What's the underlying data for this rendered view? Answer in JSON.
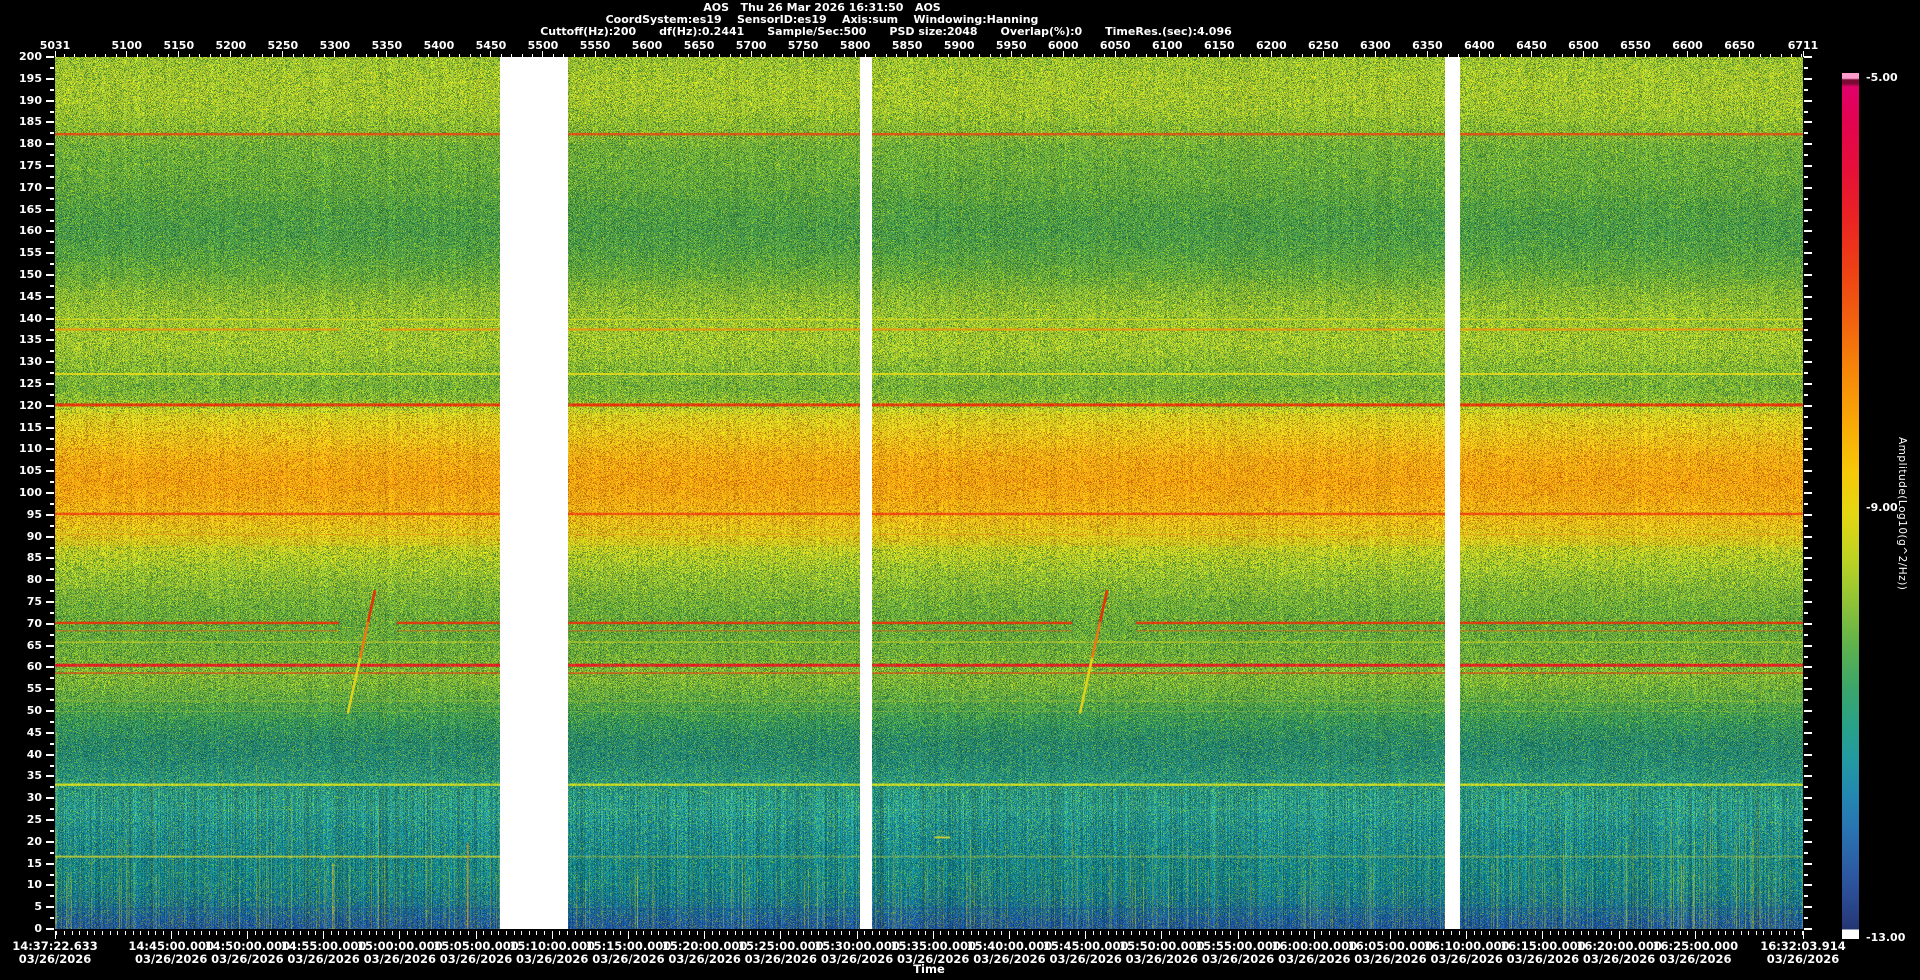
{
  "header": {
    "line1": "AOS   Thu 26 Mar 2026 16:31:50   AOS",
    "line2": "CoordSystem:es19    SensorID:es19    Axis:sum    Windowing:Hanning",
    "line3": "Cuttoff(Hz):200      df(Hz):0.2441      Sample/Sec:500      PSD size:2048      Overlap(%):0      TimeRes.(sec):4.096"
  },
  "chart_data": {
    "type": "heatmap",
    "subtype": "spectrogram",
    "x_axis": {
      "bottom_label": "Time",
      "date": "03/26/2026",
      "time_start": "14:37:22.633",
      "time_end": "16:32:03.914",
      "time_tick_labels": [
        "14:37:22.633",
        "14:45:00.000",
        "14:50:00.000",
        "14:55:00.000",
        "15:00:00.000",
        "15:05:00.000",
        "15:10:00.000",
        "15:15:00.000",
        "15:20:00.000",
        "15:25:00.000",
        "15:30:00.000",
        "15:35:00.000",
        "15:40:00.000",
        "15:45:00.000",
        "15:50:00.000",
        "15:55:00.000",
        "16:00:00.000",
        "16:05:00.000",
        "16:10:00.000",
        "16:15:00.000",
        "16:20:00.000",
        "16:25:00.000",
        "16:32:03.914"
      ],
      "minor_tick_seconds": 30,
      "top_record_labels": [
        5031,
        5100,
        5150,
        5200,
        5250,
        5300,
        5350,
        5400,
        5450,
        5500,
        5550,
        5600,
        5650,
        5700,
        5750,
        5800,
        5850,
        5900,
        5950,
        6000,
        6050,
        6100,
        6150,
        6200,
        6250,
        6300,
        6350,
        6400,
        6450,
        6500,
        6550,
        6600,
        6650,
        6711
      ],
      "top_minor_step": 10
    },
    "y_axis": {
      "tick_min": 0,
      "tick_max": 200,
      "tick_step": 5,
      "minor_step": 2.5,
      "tick_labels": [
        0,
        5,
        10,
        15,
        20,
        25,
        30,
        35,
        40,
        45,
        50,
        55,
        60,
        65,
        70,
        75,
        80,
        85,
        90,
        95,
        100,
        105,
        110,
        115,
        120,
        125,
        130,
        135,
        140,
        145,
        150,
        155,
        160,
        165,
        170,
        175,
        180,
        185,
        190,
        195,
        200
      ]
    },
    "colorbar": {
      "title": "Amplitude(Log10(g^2/Hz))",
      "value_max": -5,
      "value_min": -13,
      "tick_labels": [
        "-5.00",
        "-9.00",
        "-13.00"
      ],
      "gradient": [
        [
          0.0,
          "#ff9cce"
        ],
        [
          0.006,
          "#ff9cce"
        ],
        [
          0.008,
          "#7a0a34"
        ],
        [
          0.012,
          "#7a0a34"
        ],
        [
          0.016,
          "#e2016a"
        ],
        [
          0.05,
          "#e20253"
        ],
        [
          0.11,
          "#e60f38"
        ],
        [
          0.17,
          "#ea2422"
        ],
        [
          0.23,
          "#ee4214"
        ],
        [
          0.29,
          "#f2640e"
        ],
        [
          0.35,
          "#f68a08"
        ],
        [
          0.41,
          "#f8ac06"
        ],
        [
          0.46,
          "#f6c808"
        ],
        [
          0.51,
          "#e4d612"
        ],
        [
          0.56,
          "#bed222"
        ],
        [
          0.61,
          "#90c436"
        ],
        [
          0.66,
          "#60b24c"
        ],
        [
          0.71,
          "#3ba66a"
        ],
        [
          0.755,
          "#28a289"
        ],
        [
          0.795,
          "#2399a3"
        ],
        [
          0.835,
          "#2387b2"
        ],
        [
          0.875,
          "#2973b2"
        ],
        [
          0.915,
          "#2c5ea6"
        ],
        [
          0.95,
          "#2b4c94"
        ],
        [
          0.975,
          "#273e80"
        ],
        [
          0.988,
          "#233672"
        ],
        [
          0.99,
          "#ffffff"
        ],
        [
          1.0,
          "#ffffff"
        ]
      ]
    },
    "data_gaps_x_fraction": [
      [
        0.2546,
        0.2935
      ],
      [
        0.4605,
        0.4674
      ],
      [
        0.7952,
        0.8038
      ]
    ],
    "background_bands": [
      [
        0,
        "#1d55a2",
        -12.5
      ],
      [
        2.5,
        "#1b5e9e",
        -12.3
      ],
      [
        5,
        "#166e96",
        -12.0
      ],
      [
        8,
        "#137a90",
        -11.8
      ],
      [
        11,
        "#13828e",
        -11.7
      ],
      [
        15,
        "#15858f",
        -11.6
      ],
      [
        19,
        "#1a8a93",
        -11.5
      ],
      [
        23,
        "#1f9095",
        -11.4
      ],
      [
        27,
        "#279a94",
        -11.2
      ],
      [
        30,
        "#2a9a8e",
        -11.2
      ],
      [
        33,
        "#2a9886",
        -11.2
      ],
      [
        36,
        "#26907e",
        -11.3
      ],
      [
        39,
        "#248a78",
        -11.4
      ],
      [
        43,
        "#26896f",
        -11.4
      ],
      [
        47,
        "#349560",
        -11.1
      ],
      [
        50,
        "#469e52",
        -10.8
      ],
      [
        53,
        "#5fa846",
        -10.4
      ],
      [
        56,
        "#78b23c",
        -10.1
      ],
      [
        59,
        "#84b838",
        -9.9
      ],
      [
        62,
        "#72ae3c",
        -10.2
      ],
      [
        66,
        "#68aa3e",
        -10.3
      ],
      [
        70,
        "#66a83e",
        -10.3
      ],
      [
        74,
        "#70ae3c",
        -10.2
      ],
      [
        78,
        "#84b638",
        -9.9
      ],
      [
        82,
        "#9cc232",
        -9.5
      ],
      [
        86,
        "#bcca28",
        -9.0
      ],
      [
        90,
        "#d8c81e",
        -8.6
      ],
      [
        94,
        "#e8bc18",
        -8.3
      ],
      [
        98,
        "#f0ac12",
        -8.0
      ],
      [
        103,
        "#f2a410",
        -7.9
      ],
      [
        108,
        "#f0ae14",
        -8.0
      ],
      [
        112,
        "#e8c01a",
        -8.3
      ],
      [
        116,
        "#dcce20",
        -8.5
      ],
      [
        119,
        "#ccd026",
        -8.7
      ],
      [
        121,
        "#8cba34",
        -9.6
      ],
      [
        124,
        "#78b23a",
        -10.0
      ],
      [
        128,
        "#84b838",
        -9.8
      ],
      [
        131,
        "#96c034",
        -9.5
      ],
      [
        134,
        "#a2c632",
        -9.3
      ],
      [
        138,
        "#a2c632",
        -9.3
      ],
      [
        142,
        "#96c034",
        -9.5
      ],
      [
        146,
        "#84b638",
        -9.8
      ],
      [
        150,
        "#68aa3e",
        -10.3
      ],
      [
        155,
        "#54a146",
        -10.6
      ],
      [
        160,
        "#4a9b4b",
        -10.8
      ],
      [
        165,
        "#509e46",
        -10.7
      ],
      [
        170,
        "#60a640",
        -10.5
      ],
      [
        175,
        "#6aac3e",
        -10.4
      ],
      [
        179,
        "#70ae3c",
        -10.3
      ],
      [
        183,
        "#86b836",
        -9.8
      ],
      [
        187,
        "#9cc232",
        -9.5
      ],
      [
        191,
        "#a6c631",
        -9.3
      ],
      [
        195,
        "#a6c631",
        -9.3
      ],
      [
        200,
        "#9cc233",
        -9.5
      ]
    ],
    "tonal_lines": [
      {
        "f": 182.3,
        "w": 2.5,
        "color": "#e64a10",
        "alpha": 1,
        "amp": -6.8
      },
      {
        "f": 139.8,
        "w": 1.4,
        "color": "#e2dc1a",
        "alpha": 0.85,
        "amp": -8.4
      },
      {
        "f": 137.5,
        "w": 2,
        "color": "#f29210",
        "alpha": 1,
        "amp": -7.4,
        "gaps": [
          [
            0.163,
            0.187
          ]
        ]
      },
      {
        "f": 127.3,
        "w": 2,
        "color": "#e6de16",
        "alpha": 1,
        "amp": -8.3
      },
      {
        "f": 120.2,
        "w": 3,
        "color": "#ee2606",
        "alpha": 1,
        "amp": -6.6
      },
      {
        "f": 95.2,
        "w": 2.5,
        "color": "#ee4210",
        "alpha": 1,
        "amp": -6.9
      },
      {
        "f": 90.5,
        "w": 1.2,
        "color": "#f0921a",
        "alpha": 0.55,
        "amp": -7.9
      },
      {
        "f": 70.2,
        "w": 2.4,
        "color": "#ee2e08",
        "alpha": 1,
        "amp": -6.8,
        "gaps": [
          [
            0.1619,
            0.1951
          ],
          [
            0.5818,
            0.6184
          ]
        ]
      },
      {
        "f": 68.4,
        "w": 1.2,
        "color": "#f05a12",
        "alpha": 0.65,
        "amp": -7.5,
        "gaps": [
          [
            0.1619,
            0.1951
          ],
          [
            0.5818,
            0.6184
          ]
        ]
      },
      {
        "f": 65.8,
        "w": 1.2,
        "color": "#dcd620",
        "alpha": 0.8,
        "amp": -8.5
      },
      {
        "f": 60.5,
        "w": 3,
        "color": "#f00e20",
        "alpha": 1,
        "amp": -6.3
      },
      {
        "f": 58.7,
        "w": 1.4,
        "color": "#ee3410",
        "alpha": 0.85,
        "amp": -7.0
      },
      {
        "f": 52.3,
        "w": 1,
        "color": "#c2cc2a",
        "alpha": 0.55,
        "amp": -8.9
      },
      {
        "f": 49.9,
        "w": 1,
        "color": "#aac63a",
        "alpha": 0.4,
        "amp": -9.2
      },
      {
        "f": 33.1,
        "w": 2.4,
        "color": "#dce41a",
        "alpha": 1,
        "amp": -8.3
      },
      {
        "f": 27.4,
        "w": 1,
        "color": "#5ab077",
        "alpha": 0.35,
        "amp": -10.8
      },
      {
        "f": 16.6,
        "w": 2,
        "color": "#d0d22c",
        "alpha": 0.9,
        "amp": -8.6,
        "fade": "right"
      },
      {
        "f": 12.9,
        "w": 1,
        "color": "#38a085",
        "alpha": 0.35,
        "amp": -11.1
      },
      {
        "f": 4.6,
        "w": 1.6,
        "color": "#1c4f92",
        "alpha": 0.55,
        "amp": -12.6
      }
    ],
    "transients": {
      "regions": [
        [
          0.0,
          0.2546,
          160,
          12,
          34
        ],
        [
          0.0,
          0.2546,
          14,
          36,
          56
        ],
        [
          0.2935,
          0.4605,
          70,
          11,
          26
        ],
        [
          0.4674,
          0.7952,
          170,
          11,
          28
        ],
        [
          0.8038,
          1.0,
          115,
          12,
          32
        ],
        [
          0.915,
          0.985,
          30,
          20,
          40
        ]
      ],
      "specials": [
        {
          "xf": 0.2357,
          "ftop": 20,
          "color": "#f08a12",
          "alpha": 0.9
        },
        {
          "xf": 0.159,
          "ftop": 15,
          "color": "#e8c020",
          "alpha": 0.8
        }
      ]
    },
    "chirps": [
      {
        "xf": 0.1745,
        "f0": 50,
        "f1": 78
      },
      {
        "xf": 0.5933,
        "f0": 50,
        "f1": 78
      }
    ],
    "small_marks": [
      {
        "xf": 0.503,
        "f": 21,
        "wpx": 16,
        "color": "#d8d828",
        "alpha": 0.85
      }
    ]
  },
  "layout_colors": {
    "background": "#000000",
    "text": "#ffffff",
    "tick": "#ffffff"
  }
}
